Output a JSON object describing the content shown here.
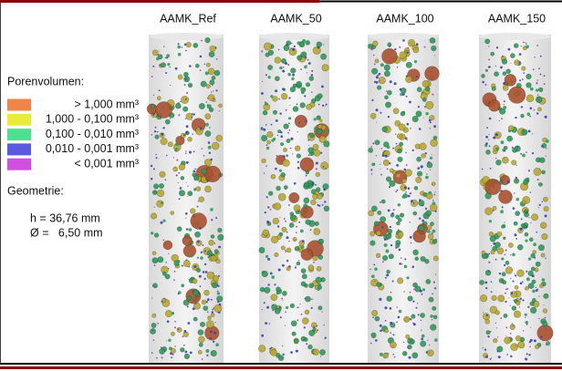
{
  "columns": [
    "AAMK_Ref",
    "AAMK_50",
    "AAMK_100",
    "AAMK_150"
  ],
  "legend": {
    "title": "Porenvolumen:",
    "items": [
      {
        "label": "> 1,000 mm³",
        "color": "#f0854a"
      },
      {
        "label": "1,000 - 0,100 mm³",
        "color": "#eaea3c"
      },
      {
        "label": "0,100 - 0,010 mm³",
        "color": "#4fe08f"
      },
      {
        "label": "0,010 - 0,001 mm³",
        "color": "#5a5ae0"
      },
      {
        "label": "< 0,001 mm³",
        "color": "#d04fe0"
      }
    ]
  },
  "geometry": {
    "title": "Geometrie:",
    "height": "h = 36,76 mm",
    "diameter": "Ø =   6,50 mm"
  }
}
